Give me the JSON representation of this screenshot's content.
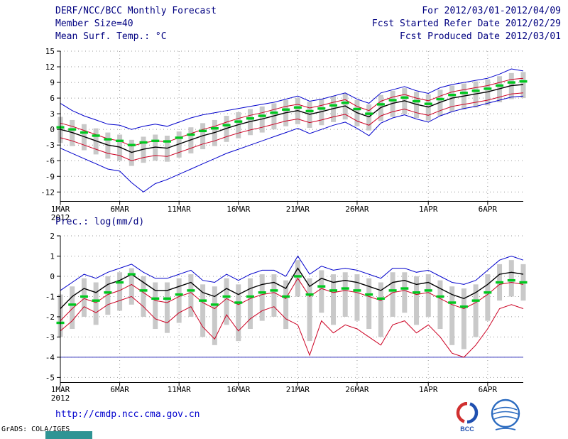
{
  "header": {
    "rows": [
      {
        "left": "DERF/NCC/BCC Monthly Forecast",
        "right": "For 2012/03/01-2012/04/09"
      },
      {
        "left": "Member Size=40",
        "right": "Fcst Started Refer Date 2012/02/29"
      },
      {
        "left": "Mean Surf. Temp.: °C",
        "right": "Fcst Produced Date 2012/03/01"
      }
    ]
  },
  "footer": {
    "url": "http://cmdp.ncc.cma.gov.cn",
    "grads_credit": "GrADS: COLA/IGES",
    "logos": [
      {
        "name": "bcc-logo",
        "label": "BCC"
      },
      {
        "name": "ncc-logo",
        "label": ""
      }
    ]
  },
  "colors": {
    "header_text": "#000080",
    "url_text": "#0000cd",
    "grid": "#999999",
    "bar_fill": "#c9c9c9",
    "envelope_blue": "#0000cc",
    "spread_red": "#cc0022",
    "mean_black": "#000000",
    "dash_green": "#00c820",
    "floor_line": "#3333bb"
  },
  "chart_data": [
    {
      "type": "line",
      "title": "Mean Surf. Temp.: °C",
      "xlabel": "",
      "ylabel": "°C",
      "ylim": [
        -12,
        15
      ],
      "yticks": [
        -12,
        -9,
        -6,
        -3,
        0,
        3,
        6,
        9,
        12,
        15
      ],
      "grid": true,
      "legend": "none",
      "n_days": 40,
      "x_start": "2012/03/01",
      "x_end": "2012/04/09",
      "xtick_days": [
        0,
        5,
        10,
        15,
        20,
        25,
        31,
        36
      ],
      "xtick_labels": [
        "1MAR",
        "6MAR",
        "11MAR",
        "16MAR",
        "21MAR",
        "26MAR",
        "1APR",
        "6APR"
      ],
      "x_year_label": "2012",
      "bars": {
        "name": "ensemble-spread-bars",
        "color": "#c9c9c9",
        "top": [
          2.4,
          1.8,
          1.0,
          0.2,
          -0.6,
          -1.0,
          -2.0,
          -1.4,
          -1.0,
          -1.2,
          -0.4,
          0.4,
          1.2,
          1.8,
          2.6,
          3.3,
          3.9,
          4.4,
          5.0,
          5.6,
          6.0,
          5.3,
          5.8,
          6.4,
          6.9,
          5.6,
          4.8,
          6.6,
          7.4,
          7.9,
          7.2,
          6.7,
          7.6,
          8.4,
          8.8,
          9.2,
          9.6,
          10.2,
          10.8,
          11.0
        ],
        "bottom": [
          -2.6,
          -3.2,
          -4.0,
          -4.8,
          -5.6,
          -6.0,
          -7.0,
          -6.4,
          -6.0,
          -6.2,
          -5.4,
          -4.6,
          -3.8,
          -3.2,
          -2.4,
          -1.7,
          -1.1,
          -0.6,
          0.0,
          0.6,
          1.0,
          0.3,
          0.8,
          1.4,
          1.9,
          0.6,
          -0.2,
          1.6,
          2.4,
          2.9,
          2.2,
          1.7,
          2.6,
          3.4,
          3.8,
          4.2,
          4.6,
          5.2,
          5.8,
          6.0
        ]
      },
      "series": [
        {
          "name": "upper-spread",
          "color": "#cc0022",
          "width": 1,
          "values": [
            1.2,
            0.6,
            -0.2,
            -1.0,
            -1.8,
            -2.2,
            -3.2,
            -2.6,
            -2.2,
            -2.4,
            -1.6,
            -0.8,
            0.0,
            0.6,
            1.4,
            2.1,
            2.7,
            3.2,
            3.8,
            4.4,
            4.8,
            4.1,
            4.6,
            5.2,
            5.7,
            4.4,
            3.6,
            5.4,
            6.2,
            6.7,
            6.0,
            5.5,
            6.4,
            7.2,
            7.6,
            8.0,
            8.4,
            9.0,
            9.6,
            9.8
          ]
        },
        {
          "name": "lower-spread",
          "color": "#cc0022",
          "width": 1,
          "values": [
            -1.6,
            -2.2,
            -3.0,
            -3.8,
            -4.6,
            -5.0,
            -6.0,
            -5.4,
            -5.0,
            -5.2,
            -4.4,
            -3.6,
            -2.8,
            -2.2,
            -1.4,
            -0.7,
            -0.1,
            0.4,
            1.0,
            1.6,
            2.0,
            1.3,
            1.8,
            2.4,
            2.9,
            1.6,
            0.8,
            2.6,
            3.4,
            3.9,
            3.2,
            2.7,
            3.6,
            4.4,
            4.8,
            5.2,
            5.6,
            6.2,
            6.8,
            7.0
          ]
        },
        {
          "name": "ensemble-max",
          "color": "#0000cc",
          "width": 1,
          "values": [
            5.0,
            3.6,
            2.6,
            1.8,
            1.0,
            0.8,
            0.0,
            0.6,
            1.0,
            0.6,
            1.4,
            2.2,
            2.8,
            3.2,
            3.6,
            4.0,
            4.4,
            4.8,
            5.2,
            5.8,
            6.4,
            5.4,
            5.8,
            6.4,
            7.0,
            5.8,
            5.0,
            7.0,
            7.6,
            8.2,
            7.4,
            6.9,
            8.0,
            8.6,
            9.0,
            9.4,
            9.8,
            10.6,
            11.6,
            11.2
          ]
        },
        {
          "name": "ensemble-min",
          "color": "#0000cc",
          "width": 1,
          "values": [
            -3.6,
            -4.6,
            -5.6,
            -6.6,
            -7.6,
            -8.0,
            -10.2,
            -12.0,
            -10.4,
            -9.6,
            -8.6,
            -7.6,
            -6.6,
            -5.6,
            -4.6,
            -3.8,
            -3.0,
            -2.2,
            -1.4,
            -0.6,
            0.2,
            -0.8,
            0.0,
            0.8,
            1.4,
            0.2,
            -1.2,
            1.2,
            2.2,
            2.8,
            2.0,
            1.4,
            2.6,
            3.4,
            4.0,
            4.4,
            5.0,
            5.6,
            6.2,
            6.4
          ]
        },
        {
          "name": "ensemble-mean",
          "color": "#000000",
          "width": 1.4,
          "values": [
            0.0,
            -0.6,
            -1.4,
            -2.2,
            -3.0,
            -3.4,
            -4.4,
            -3.8,
            -3.4,
            -3.6,
            -2.8,
            -2.0,
            -1.2,
            -0.6,
            0.2,
            0.9,
            1.5,
            2.0,
            2.6,
            3.2,
            3.6,
            2.9,
            3.4,
            4.0,
            4.5,
            3.2,
            2.4,
            4.2,
            5.0,
            5.5,
            4.8,
            4.3,
            5.2,
            6.0,
            6.4,
            6.8,
            7.2,
            7.8,
            8.4,
            8.6
          ]
        }
      ],
      "dashes": {
        "name": "green-dash-reference",
        "color": "#00c820",
        "values": [
          0.4,
          0.0,
          -0.6,
          -1.2,
          -1.9,
          -2.2,
          -3.0,
          -2.5,
          -2.2,
          -2.3,
          -1.6,
          -1.0,
          -0.3,
          0.2,
          0.8,
          1.5,
          2.1,
          2.6,
          3.2,
          3.8,
          4.2,
          3.5,
          4.0,
          4.6,
          5.1,
          3.9,
          3.0,
          4.8,
          5.6,
          6.1,
          5.4,
          4.9,
          5.8,
          6.6,
          7.0,
          7.4,
          7.8,
          8.4,
          9.0,
          9.2
        ]
      }
    },
    {
      "type": "line",
      "title": "Prec.: log(mm/d)",
      "xlabel": "",
      "ylabel": "log(mm/d)",
      "ylim": [
        -5,
        2
      ],
      "yticks": [
        -5,
        -4,
        -3,
        -2,
        -1,
        0,
        1,
        2
      ],
      "grid": true,
      "legend": "none",
      "n_days": 40,
      "x_start": "2012/03/01",
      "x_end": "2012/04/09",
      "xtick_days": [
        0,
        5,
        10,
        15,
        20,
        25,
        31,
        36
      ],
      "xtick_labels": [
        "1MAR",
        "6MAR",
        "11MAR",
        "16MAR",
        "21MAR",
        "26MAR",
        "1APR",
        "6APR"
      ],
      "x_year_label": "2012",
      "hline": {
        "name": "log-floor-line",
        "color": "#3333bb",
        "value": -4.0
      },
      "bars": {
        "name": "ensemble-spread-bars",
        "color": "#c9c9c9",
        "top": [
          -0.9,
          -0.5,
          -0.1,
          -0.3,
          0.0,
          0.2,
          0.4,
          0.0,
          -0.3,
          -0.3,
          -0.1,
          0.1,
          -0.4,
          -0.5,
          -0.1,
          -0.4,
          -0.1,
          0.1,
          0.1,
          -0.2,
          0.8,
          -0.1,
          0.3,
          0.1,
          0.2,
          0.1,
          -0.1,
          -0.3,
          0.2,
          0.2,
          0.0,
          0.1,
          -0.2,
          -0.5,
          -0.6,
          -0.4,
          0.1,
          0.6,
          0.8,
          0.6
        ],
        "bottom": [
          -3.0,
          -2.6,
          -2.0,
          -2.4,
          -1.9,
          -1.7,
          -1.4,
          -2.0,
          -2.6,
          -2.8,
          -2.3,
          -2.0,
          -3.0,
          -3.4,
          -2.4,
          -3.2,
          -2.6,
          -2.2,
          -2.0,
          -2.6,
          -1.0,
          -3.2,
          -1.8,
          -2.4,
          -2.0,
          -2.2,
          -2.6,
          -3.0,
          -2.0,
          -1.8,
          -2.4,
          -2.0,
          -2.6,
          -3.4,
          -3.6,
          -3.0,
          -2.2,
          -1.2,
          -1.0,
          -1.2
        ]
      },
      "series": [
        {
          "name": "upper-spread",
          "color": "#cc0022",
          "width": 1,
          "values": [
            -2.2,
            -1.6,
            -1.1,
            -1.3,
            -0.9,
            -0.7,
            -0.4,
            -0.8,
            -1.2,
            -1.3,
            -1.0,
            -0.8,
            -1.3,
            -1.6,
            -1.1,
            -1.4,
            -1.1,
            -0.9,
            -0.8,
            -1.1,
            -0.1,
            -1.0,
            -0.6,
            -0.8,
            -0.7,
            -0.8,
            -1.0,
            -1.2,
            -0.8,
            -0.7,
            -0.9,
            -0.8,
            -1.1,
            -1.4,
            -1.6,
            -1.3,
            -0.9,
            -0.4,
            -0.3,
            -0.4
          ]
        },
        {
          "name": "ensemble-min",
          "color": "#cc0022",
          "width": 1,
          "values": [
            -2.7,
            -2.2,
            -1.5,
            -1.8,
            -1.4,
            -1.2,
            -1.0,
            -1.5,
            -2.1,
            -2.3,
            -1.8,
            -1.5,
            -2.5,
            -3.1,
            -1.9,
            -2.7,
            -2.1,
            -1.7,
            -1.5,
            -2.1,
            -2.4,
            -3.9,
            -2.2,
            -2.8,
            -2.4,
            -2.6,
            -3.0,
            -3.4,
            -2.4,
            -2.2,
            -2.8,
            -2.4,
            -3.0,
            -3.8,
            -4.0,
            -3.4,
            -2.6,
            -1.6,
            -1.4,
            -1.6
          ]
        },
        {
          "name": "ensemble-max",
          "color": "#0000cc",
          "width": 1,
          "values": [
            -0.7,
            -0.3,
            0.1,
            -0.1,
            0.2,
            0.4,
            0.6,
            0.2,
            -0.1,
            -0.1,
            0.1,
            0.3,
            -0.2,
            -0.3,
            0.1,
            -0.2,
            0.1,
            0.3,
            0.3,
            0.0,
            1.0,
            0.1,
            0.5,
            0.3,
            0.4,
            0.3,
            0.1,
            -0.1,
            0.4,
            0.4,
            0.2,
            0.3,
            0.0,
            -0.3,
            -0.4,
            -0.2,
            0.3,
            0.8,
            1.0,
            0.8
          ]
        },
        {
          "name": "ensemble-mean",
          "color": "#000000",
          "width": 1.4,
          "values": [
            -1.6,
            -1.0,
            -0.6,
            -0.8,
            -0.4,
            -0.2,
            0.1,
            -0.3,
            -0.7,
            -0.7,
            -0.5,
            -0.3,
            -0.8,
            -1.0,
            -0.6,
            -0.9,
            -0.6,
            -0.4,
            -0.3,
            -0.6,
            0.4,
            -0.5,
            -0.1,
            -0.3,
            -0.2,
            -0.3,
            -0.5,
            -0.7,
            -0.3,
            -0.2,
            -0.4,
            -0.3,
            -0.6,
            -0.9,
            -1.1,
            -0.8,
            -0.4,
            0.1,
            0.2,
            0.1
          ]
        }
      ],
      "dashes": {
        "name": "green-dash-reference",
        "color": "#00c820",
        "values": [
          -2.3,
          -1.4,
          -1.0,
          -1.2,
          -0.8,
          -0.3,
          0.1,
          -0.7,
          -1.1,
          -1.1,
          -0.9,
          -0.7,
          -1.2,
          -1.4,
          -1.0,
          -1.3,
          -1.0,
          -0.8,
          -0.7,
          -1.0,
          0.0,
          -0.9,
          -0.5,
          -0.7,
          -0.6,
          -0.7,
          -0.9,
          -1.1,
          -0.7,
          -0.6,
          -0.8,
          -0.7,
          -1.0,
          -1.3,
          -1.5,
          -1.2,
          -0.8,
          -0.3,
          -0.2,
          -0.3
        ]
      }
    }
  ]
}
